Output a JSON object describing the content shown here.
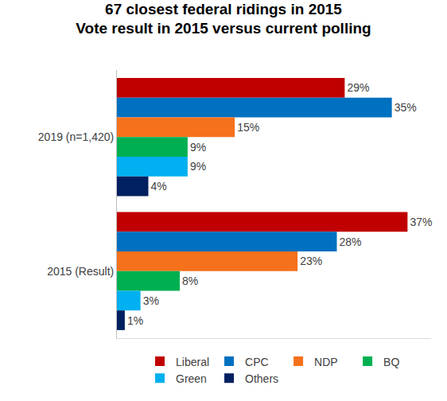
{
  "chart_data": {
    "type": "bar",
    "orientation": "horizontal",
    "title": "67 closest federal ridings in 2015",
    "subtitle": "Vote result in 2015 versus current polling",
    "categories": [
      "2019 (n=1,420)",
      "2015 (Result)"
    ],
    "series": [
      {
        "name": "Liberal",
        "color": "#c00000",
        "values": [
          29,
          37
        ],
        "value_labels": [
          "29%",
          "37%"
        ]
      },
      {
        "name": "CPC",
        "color": "#0070c0",
        "values": [
          35,
          28
        ],
        "value_labels": [
          "35%",
          "28%"
        ]
      },
      {
        "name": "NDP",
        "color": "#f5711c",
        "values": [
          15,
          23
        ],
        "value_labels": [
          "15%",
          "23%"
        ]
      },
      {
        "name": "BQ",
        "color": "#00b050",
        "values": [
          9,
          8
        ],
        "value_labels": [
          "9%",
          "8%"
        ]
      },
      {
        "name": "Green",
        "color": "#00b0f0",
        "values": [
          9,
          3
        ],
        "value_labels": [
          "9%",
          "3%"
        ]
      },
      {
        "name": "Others",
        "color": "#002060",
        "values": [
          4,
          1
        ],
        "value_labels": [
          "4%",
          "1%"
        ]
      }
    ],
    "xlim": [
      0,
      40
    ],
    "tick_labels": "y",
    "grid": false,
    "legend": "bottom",
    "data_labels": true
  }
}
